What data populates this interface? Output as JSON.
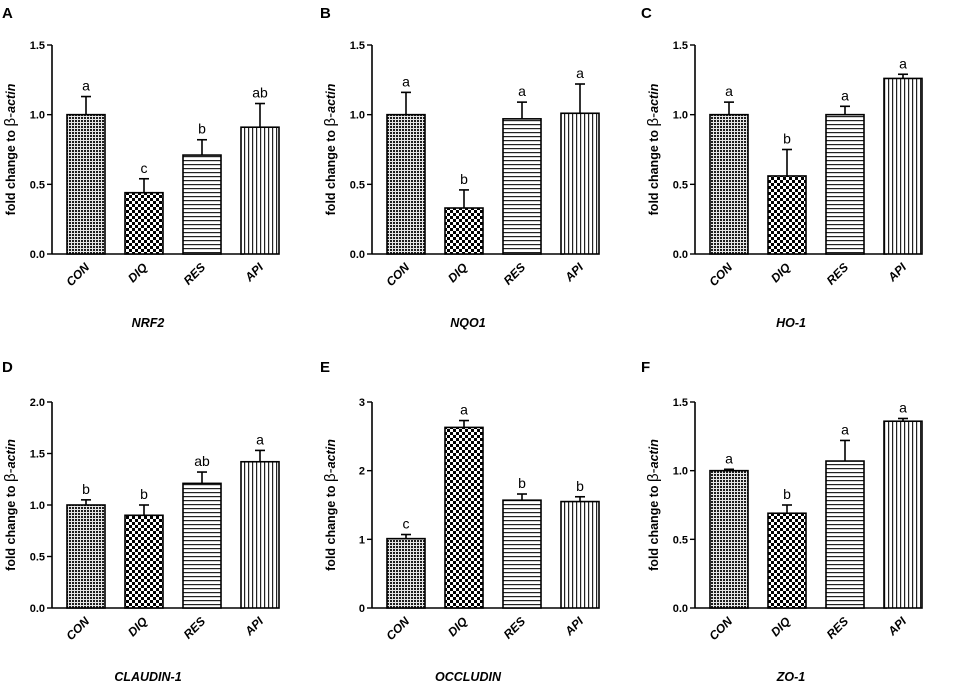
{
  "chart_data": [
    {
      "panel": "A",
      "type": "bar",
      "categories": [
        "CON",
        "DIQ",
        "RES",
        "API"
      ],
      "values": [
        1.0,
        0.44,
        0.71,
        0.91
      ],
      "errors": [
        0.13,
        0.1,
        0.11,
        0.17
      ],
      "letters": [
        "a",
        "c",
        "b",
        "ab"
      ],
      "ylabel_prefix": "fold change to ",
      "ylabel_greek": "β-",
      "ylabel_italic": "actin",
      "xlabel": "NRF2",
      "ylim": [
        0,
        1.5
      ],
      "yticks": [
        0,
        0.5,
        1.0,
        1.5
      ],
      "ytick_labels": [
        "0.0",
        "0.5",
        "1.0",
        "1.5"
      ]
    },
    {
      "panel": "B",
      "type": "bar",
      "categories": [
        "CON",
        "DIQ",
        "RES",
        "API"
      ],
      "values": [
        1.0,
        0.33,
        0.97,
        1.01
      ],
      "errors": [
        0.16,
        0.13,
        0.12,
        0.21
      ],
      "letters": [
        "a",
        "b",
        "a",
        "a"
      ],
      "ylabel_prefix": "fold change to ",
      "ylabel_greek": "β-",
      "ylabel_italic": "actin",
      "xlabel": "NQO1",
      "ylim": [
        0,
        1.5
      ],
      "yticks": [
        0,
        0.5,
        1.0,
        1.5
      ],
      "ytick_labels": [
        "0.0",
        "0.5",
        "1.0",
        "1.5"
      ]
    },
    {
      "panel": "C",
      "type": "bar",
      "categories": [
        "CON",
        "DIQ",
        "RES",
        "API"
      ],
      "values": [
        1.0,
        0.56,
        1.0,
        1.26
      ],
      "errors": [
        0.09,
        0.19,
        0.06,
        0.03
      ],
      "letters": [
        "a",
        "b",
        "a",
        "a"
      ],
      "ylabel_prefix": "fold change to ",
      "ylabel_greek": "β-",
      "ylabel_italic": "actin",
      "xlabel": "HO-1",
      "ylim": [
        0,
        1.5
      ],
      "yticks": [
        0,
        0.5,
        1.0,
        1.5
      ],
      "ytick_labels": [
        "0.0",
        "0.5",
        "1.0",
        "1.5"
      ]
    },
    {
      "panel": "D",
      "type": "bar",
      "categories": [
        "CON",
        "DIQ",
        "RES",
        "API"
      ],
      "values": [
        1.0,
        0.9,
        1.21,
        1.42
      ],
      "errors": [
        0.05,
        0.1,
        0.11,
        0.11
      ],
      "letters": [
        "b",
        "b",
        "ab",
        "a"
      ],
      "ylabel_prefix": "fold change to ",
      "ylabel_greek": "β-",
      "ylabel_italic": "actin",
      "xlabel": "CLAUDIN-1",
      "ylim": [
        0,
        2.0
      ],
      "yticks": [
        0,
        0.5,
        1.0,
        1.5,
        2.0
      ],
      "ytick_labels": [
        "0.0",
        "0.5",
        "1.0",
        "1.5",
        "2.0"
      ]
    },
    {
      "panel": "E",
      "type": "bar",
      "categories": [
        "CON",
        "DIQ",
        "RES",
        "API"
      ],
      "values": [
        1.01,
        2.63,
        1.57,
        1.55
      ],
      "errors": [
        0.06,
        0.1,
        0.09,
        0.07
      ],
      "letters": [
        "c",
        "a",
        "b",
        "b"
      ],
      "ylabel_prefix": "fold change to ",
      "ylabel_greek": "β-",
      "ylabel_italic": "actin",
      "xlabel": "OCCLUDIN",
      "ylim": [
        0,
        3
      ],
      "yticks": [
        0,
        1,
        2,
        3
      ],
      "ytick_labels": [
        "0",
        "1",
        "2",
        "3"
      ]
    },
    {
      "panel": "F",
      "type": "bar",
      "categories": [
        "CON",
        "DIQ",
        "RES",
        "API"
      ],
      "values": [
        1.0,
        0.69,
        1.07,
        1.36
      ],
      "errors": [
        0.01,
        0.06,
        0.15,
        0.02
      ],
      "letters": [
        "a",
        "b",
        "a",
        "a"
      ],
      "ylabel_prefix": "fold change to ",
      "ylabel_greek": "β-",
      "ylabel_italic": "actin",
      "xlabel": "ZO-1",
      "ylim": [
        0,
        1.5
      ],
      "yticks": [
        0,
        0.5,
        1.0,
        1.5
      ],
      "ytick_labels": [
        "0.0",
        "0.5",
        "1.0",
        "1.5"
      ]
    }
  ]
}
